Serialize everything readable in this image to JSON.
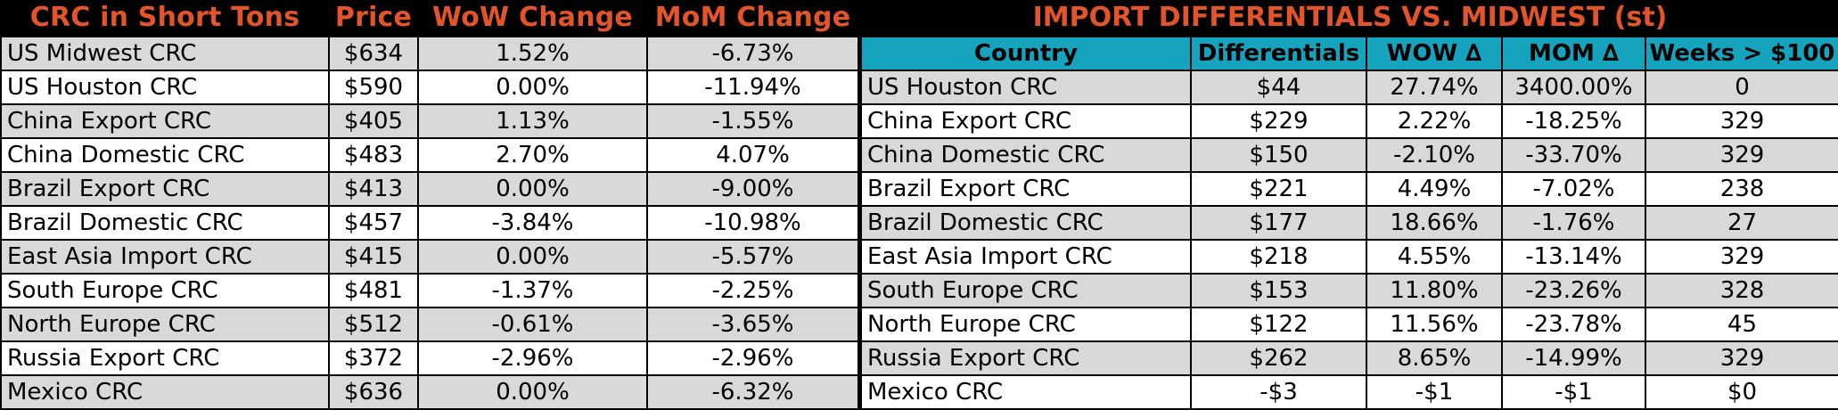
{
  "colors": {
    "header_text": "#e2542a",
    "column_header_bg": "#16a3bd",
    "row_shade": "#d9d9d9",
    "background": "#000000"
  },
  "left_table": {
    "headers": [
      "CRC in Short Tons",
      "Price",
      "WoW Change",
      "MoM Change"
    ],
    "rows": [
      [
        "US Midwest CRC",
        "$634",
        "1.52%",
        "-6.73%"
      ],
      [
        "US Houston CRC",
        "$590",
        "0.00%",
        "-11.94%"
      ],
      [
        "China Export CRC",
        "$405",
        "1.13%",
        "-1.55%"
      ],
      [
        "China Domestic CRC",
        "$483",
        "2.70%",
        "4.07%"
      ],
      [
        "Brazil Export CRC",
        "$413",
        "0.00%",
        "-9.00%"
      ],
      [
        "Brazil Domestic CRC",
        "$457",
        "-3.84%",
        "-10.98%"
      ],
      [
        "East Asia Import CRC",
        "$415",
        "0.00%",
        "-5.57%"
      ],
      [
        "South Europe CRC",
        "$481",
        "-1.37%",
        "-2.25%"
      ],
      [
        "North Europe CRC",
        "$512",
        "-0.61%",
        "-3.65%"
      ],
      [
        "Russia Export CRC",
        "$372",
        "-2.96%",
        "-2.96%"
      ],
      [
        "Mexico CRC",
        "$636",
        "0.00%",
        "-6.32%"
      ]
    ]
  },
  "right_table": {
    "title": "IMPORT DIFFERENTIALS VS. MIDWEST (st)",
    "headers": [
      "Country",
      "Differentials",
      "WOW ∆",
      "MOM ∆",
      "Weeks > $100"
    ],
    "rows": [
      [
        "US Houston CRC",
        "$44",
        "27.74%",
        "3400.00%",
        "0"
      ],
      [
        "China Export CRC",
        "$229",
        "2.22%",
        "-18.25%",
        "329"
      ],
      [
        "China Domestic CRC",
        "$150",
        "-2.10%",
        "-33.70%",
        "329"
      ],
      [
        "Brazil Export CRC",
        "$221",
        "4.49%",
        "-7.02%",
        "238"
      ],
      [
        "Brazil Domestic CRC",
        "$177",
        "18.66%",
        "-1.76%",
        "27"
      ],
      [
        "East Asia Import CRC",
        "$218",
        "4.55%",
        "-13.14%",
        "329"
      ],
      [
        "South Europe CRC",
        "$153",
        "11.80%",
        "-23.26%",
        "328"
      ],
      [
        "North Europe CRC",
        "$122",
        "11.56%",
        "-23.78%",
        "45"
      ],
      [
        "Russia Export CRC",
        "$262",
        "8.65%",
        "-14.99%",
        "329"
      ],
      [
        "Mexico CRC",
        "-$3",
        "-$1",
        "-$1",
        "$0"
      ]
    ]
  }
}
